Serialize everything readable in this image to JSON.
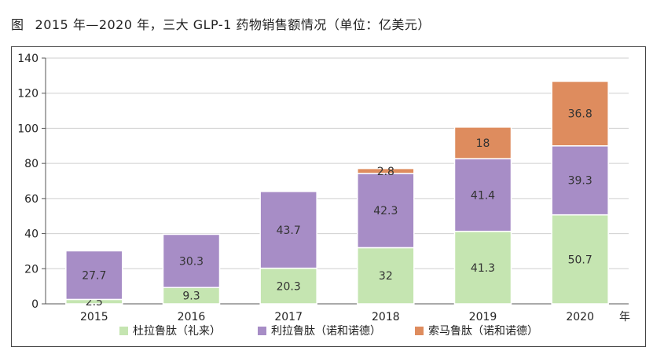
{
  "figure_label": "图",
  "title": "2015 年—2020 年，三大 GLP-1 药物销售额情况（单位：亿美元）",
  "x_unit": "年",
  "colors": {
    "dulaglutide": "#c5e5b1",
    "liraglutide": "#a78dc6",
    "semaglutide": "#de8c5e",
    "grid": "#cfcfcf",
    "axis": "#555555"
  },
  "chart_data": {
    "type": "bar",
    "stacked": true,
    "categories": [
      "2015",
      "2016",
      "2017",
      "2018",
      "2019",
      "2020"
    ],
    "ylim": [
      0,
      140
    ],
    "yticks": [
      0,
      20,
      40,
      60,
      80,
      100,
      120,
      140
    ],
    "grid": true,
    "legend_position": "bottom",
    "series": [
      {
        "name": "杜拉鲁肽（礼来）",
        "values": [
          2.5,
          9.3,
          20.3,
          32,
          41.3,
          50.7
        ],
        "labels": [
          "2.5",
          "9.3",
          "20.3",
          "32",
          "41.3",
          "50.7"
        ]
      },
      {
        "name": "利拉鲁肽（诺和诺德）",
        "values": [
          27.7,
          30.3,
          43.7,
          42.3,
          41.4,
          39.3
        ],
        "labels": [
          "27.7",
          "30.3",
          "43.7",
          "42.3",
          "41.4",
          "39.3"
        ]
      },
      {
        "name": "索马鲁肽（诺和诺德）",
        "values": [
          0,
          0,
          0,
          2.8,
          18,
          36.8
        ],
        "labels": [
          "",
          "",
          "",
          "2.8",
          "18",
          "36.8"
        ]
      }
    ]
  }
}
